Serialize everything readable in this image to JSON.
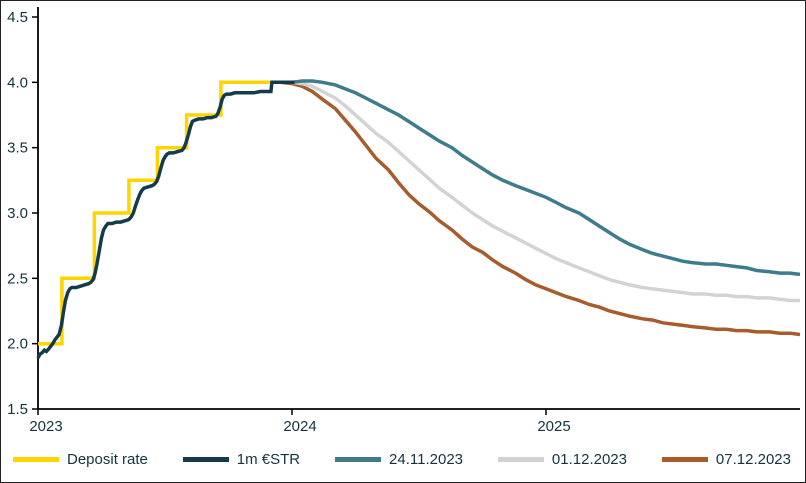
{
  "chart_data": {
    "type": "line",
    "title": "",
    "xlabel": "",
    "ylabel": "",
    "xlim": [
      2023,
      2026.0
    ],
    "ylim": [
      1.5,
      4.5
    ],
    "xtick_values": [
      2023,
      2024,
      2025
    ],
    "xtick_labels": [
      "2023",
      "2024",
      "2025"
    ],
    "ytick_values": [
      4.5,
      4.0,
      3.5,
      3.0,
      2.5,
      2.0,
      1.5
    ],
    "ytick_labels": [
      "4.5",
      "4.0",
      "3.5",
      "3.0",
      "2.5",
      "2.0",
      "1.5"
    ],
    "grid": false,
    "legend_position": "bottom",
    "axis_color": "#000000",
    "text_color": "#15333f",
    "background": "#ffffff",
    "series": [
      {
        "name": "Deposit rate",
        "color": "#ffd400",
        "width": 3.5,
        "step": true,
        "points": [
          [
            2023.0,
            2.0
          ],
          [
            2023.094,
            2.0
          ],
          [
            2023.094,
            2.5
          ],
          [
            2023.222,
            2.5
          ],
          [
            2023.222,
            3.0
          ],
          [
            2023.358,
            3.0
          ],
          [
            2023.358,
            3.25
          ],
          [
            2023.47,
            3.25
          ],
          [
            2023.47,
            3.5
          ],
          [
            2023.585,
            3.5
          ],
          [
            2023.585,
            3.75
          ],
          [
            2023.72,
            3.75
          ],
          [
            2023.72,
            4.0
          ],
          [
            2023.94,
            4.0
          ]
        ]
      },
      {
        "name": "1m €STR",
        "color": "#143b4a",
        "width": 3.5,
        "step": false,
        "points": [
          [
            2023.0,
            1.89
          ],
          [
            2023.008,
            1.92
          ],
          [
            2023.016,
            1.93
          ],
          [
            2023.025,
            1.95
          ],
          [
            2023.033,
            1.94
          ],
          [
            2023.042,
            1.96
          ],
          [
            2023.05,
            1.98
          ],
          [
            2023.058,
            2.0
          ],
          [
            2023.067,
            2.03
          ],
          [
            2023.075,
            2.05
          ],
          [
            2023.083,
            2.07
          ],
          [
            2023.092,
            2.14
          ],
          [
            2023.1,
            2.24
          ],
          [
            2023.108,
            2.33
          ],
          [
            2023.117,
            2.39
          ],
          [
            2023.125,
            2.42
          ],
          [
            2023.133,
            2.43
          ],
          [
            2023.15,
            2.43
          ],
          [
            2023.167,
            2.44
          ],
          [
            2023.183,
            2.45
          ],
          [
            2023.2,
            2.46
          ],
          [
            2023.208,
            2.47
          ],
          [
            2023.217,
            2.49
          ],
          [
            2023.225,
            2.54
          ],
          [
            2023.233,
            2.62
          ],
          [
            2023.242,
            2.72
          ],
          [
            2023.25,
            2.81
          ],
          [
            2023.258,
            2.87
          ],
          [
            2023.267,
            2.9
          ],
          [
            2023.275,
            2.92
          ],
          [
            2023.292,
            2.92
          ],
          [
            2023.308,
            2.93
          ],
          [
            2023.325,
            2.93
          ],
          [
            2023.342,
            2.94
          ],
          [
            2023.358,
            2.95
          ],
          [
            2023.367,
            2.97
          ],
          [
            2023.375,
            3.0
          ],
          [
            2023.383,
            3.05
          ],
          [
            2023.392,
            3.1
          ],
          [
            2023.4,
            3.14
          ],
          [
            2023.408,
            3.17
          ],
          [
            2023.417,
            3.19
          ],
          [
            2023.433,
            3.2
          ],
          [
            2023.45,
            3.21
          ],
          [
            2023.458,
            3.22
          ],
          [
            2023.467,
            3.24
          ],
          [
            2023.475,
            3.28
          ],
          [
            2023.483,
            3.34
          ],
          [
            2023.492,
            3.4
          ],
          [
            2023.5,
            3.43
          ],
          [
            2023.508,
            3.45
          ],
          [
            2023.517,
            3.46
          ],
          [
            2023.533,
            3.46
          ],
          [
            2023.55,
            3.47
          ],
          [
            2023.567,
            3.48
          ],
          [
            2023.575,
            3.5
          ],
          [
            2023.583,
            3.54
          ],
          [
            2023.592,
            3.6
          ],
          [
            2023.6,
            3.66
          ],
          [
            2023.608,
            3.7
          ],
          [
            2023.617,
            3.71
          ],
          [
            2023.633,
            3.72
          ],
          [
            2023.65,
            3.72
          ],
          [
            2023.667,
            3.73
          ],
          [
            2023.683,
            3.73
          ],
          [
            2023.7,
            3.74
          ],
          [
            2023.708,
            3.76
          ],
          [
            2023.717,
            3.81
          ],
          [
            2023.725,
            3.87
          ],
          [
            2023.733,
            3.9
          ],
          [
            2023.742,
            3.91
          ],
          [
            2023.758,
            3.91
          ],
          [
            2023.775,
            3.92
          ],
          [
            2023.8,
            3.92
          ],
          [
            2023.825,
            3.92
          ],
          [
            2023.85,
            3.92
          ],
          [
            2023.875,
            3.93
          ],
          [
            2023.9,
            3.93
          ],
          [
            2023.917,
            3.93
          ],
          [
            2023.921,
            4.0
          ],
          [
            2023.95,
            4.0
          ],
          [
            2023.975,
            4.0
          ],
          [
            2024.0,
            4.0
          ],
          [
            2024.01,
            4.0
          ]
        ]
      },
      {
        "name": "24.11.2023",
        "color": "#3d7d8b",
        "width": 3.5,
        "step": false,
        "points": [
          [
            2023.955,
            4.0
          ],
          [
            2024.0,
            4.0
          ],
          [
            2024.04,
            4.01
          ],
          [
            2024.08,
            4.01
          ],
          [
            2024.12,
            4.0
          ],
          [
            2024.17,
            3.98
          ],
          [
            2024.21,
            3.95
          ],
          [
            2024.25,
            3.92
          ],
          [
            2024.29,
            3.88
          ],
          [
            2024.33,
            3.84
          ],
          [
            2024.38,
            3.79
          ],
          [
            2024.42,
            3.75
          ],
          [
            2024.46,
            3.7
          ],
          [
            2024.5,
            3.65
          ],
          [
            2024.54,
            3.6
          ],
          [
            2024.58,
            3.55
          ],
          [
            2024.63,
            3.5
          ],
          [
            2024.67,
            3.44
          ],
          [
            2024.71,
            3.39
          ],
          [
            2024.75,
            3.34
          ],
          [
            2024.79,
            3.29
          ],
          [
            2024.83,
            3.25
          ],
          [
            2024.88,
            3.21
          ],
          [
            2024.92,
            3.18
          ],
          [
            2024.96,
            3.15
          ],
          [
            2025.0,
            3.12
          ],
          [
            2025.04,
            3.08
          ],
          [
            2025.08,
            3.04
          ],
          [
            2025.13,
            3.0
          ],
          [
            2025.17,
            2.95
          ],
          [
            2025.21,
            2.9
          ],
          [
            2025.25,
            2.85
          ],
          [
            2025.29,
            2.8
          ],
          [
            2025.33,
            2.76
          ],
          [
            2025.38,
            2.72
          ],
          [
            2025.42,
            2.69
          ],
          [
            2025.46,
            2.67
          ],
          [
            2025.5,
            2.65
          ],
          [
            2025.54,
            2.63
          ],
          [
            2025.58,
            2.62
          ],
          [
            2025.63,
            2.61
          ],
          [
            2025.67,
            2.61
          ],
          [
            2025.71,
            2.6
          ],
          [
            2025.75,
            2.59
          ],
          [
            2025.79,
            2.58
          ],
          [
            2025.83,
            2.56
          ],
          [
            2025.88,
            2.55
          ],
          [
            2025.92,
            2.54
          ],
          [
            2025.96,
            2.54
          ],
          [
            2026.0,
            2.53
          ]
        ]
      },
      {
        "name": "01.12.2023",
        "color": "#d2d4d3",
        "width": 3.5,
        "step": false,
        "points": [
          [
            2023.955,
            4.0
          ],
          [
            2024.0,
            4.0
          ],
          [
            2024.04,
            3.99
          ],
          [
            2024.08,
            3.97
          ],
          [
            2024.12,
            3.93
          ],
          [
            2024.17,
            3.88
          ],
          [
            2024.21,
            3.82
          ],
          [
            2024.25,
            3.75
          ],
          [
            2024.29,
            3.68
          ],
          [
            2024.33,
            3.61
          ],
          [
            2024.38,
            3.54
          ],
          [
            2024.42,
            3.47
          ],
          [
            2024.46,
            3.4
          ],
          [
            2024.5,
            3.33
          ],
          [
            2024.54,
            3.26
          ],
          [
            2024.58,
            3.19
          ],
          [
            2024.63,
            3.12
          ],
          [
            2024.67,
            3.06
          ],
          [
            2024.71,
            3.0
          ],
          [
            2024.75,
            2.95
          ],
          [
            2024.79,
            2.9
          ],
          [
            2024.83,
            2.86
          ],
          [
            2024.88,
            2.81
          ],
          [
            2024.92,
            2.77
          ],
          [
            2024.96,
            2.73
          ],
          [
            2025.0,
            2.69
          ],
          [
            2025.04,
            2.65
          ],
          [
            2025.08,
            2.62
          ],
          [
            2025.13,
            2.58
          ],
          [
            2025.17,
            2.55
          ],
          [
            2025.21,
            2.52
          ],
          [
            2025.25,
            2.49
          ],
          [
            2025.29,
            2.47
          ],
          [
            2025.33,
            2.45
          ],
          [
            2025.38,
            2.43
          ],
          [
            2025.42,
            2.42
          ],
          [
            2025.46,
            2.41
          ],
          [
            2025.5,
            2.4
          ],
          [
            2025.54,
            2.39
          ],
          [
            2025.58,
            2.38
          ],
          [
            2025.63,
            2.38
          ],
          [
            2025.67,
            2.37
          ],
          [
            2025.71,
            2.37
          ],
          [
            2025.75,
            2.36
          ],
          [
            2025.79,
            2.36
          ],
          [
            2025.83,
            2.35
          ],
          [
            2025.88,
            2.35
          ],
          [
            2025.92,
            2.34
          ],
          [
            2025.96,
            2.33
          ],
          [
            2026.0,
            2.33
          ]
        ]
      },
      {
        "name": "07.12.2023",
        "color": "#a85b2b",
        "width": 3.5,
        "step": false,
        "points": [
          [
            2023.955,
            4.0
          ],
          [
            2024.0,
            3.99
          ],
          [
            2024.04,
            3.97
          ],
          [
            2024.08,
            3.93
          ],
          [
            2024.12,
            3.87
          ],
          [
            2024.17,
            3.8
          ],
          [
            2024.21,
            3.71
          ],
          [
            2024.25,
            3.62
          ],
          [
            2024.29,
            3.52
          ],
          [
            2024.33,
            3.42
          ],
          [
            2024.38,
            3.33
          ],
          [
            2024.42,
            3.23
          ],
          [
            2024.46,
            3.14
          ],
          [
            2024.5,
            3.07
          ],
          [
            2024.54,
            3.01
          ],
          [
            2024.58,
            2.94
          ],
          [
            2024.63,
            2.87
          ],
          [
            2024.67,
            2.8
          ],
          [
            2024.71,
            2.74
          ],
          [
            2024.75,
            2.7
          ],
          [
            2024.79,
            2.64
          ],
          [
            2024.83,
            2.59
          ],
          [
            2024.88,
            2.54
          ],
          [
            2024.92,
            2.49
          ],
          [
            2024.96,
            2.45
          ],
          [
            2025.0,
            2.42
          ],
          [
            2025.04,
            2.39
          ],
          [
            2025.08,
            2.36
          ],
          [
            2025.13,
            2.33
          ],
          [
            2025.17,
            2.3
          ],
          [
            2025.21,
            2.28
          ],
          [
            2025.25,
            2.25
          ],
          [
            2025.29,
            2.23
          ],
          [
            2025.33,
            2.21
          ],
          [
            2025.38,
            2.19
          ],
          [
            2025.42,
            2.18
          ],
          [
            2025.46,
            2.16
          ],
          [
            2025.5,
            2.15
          ],
          [
            2025.54,
            2.14
          ],
          [
            2025.58,
            2.13
          ],
          [
            2025.63,
            2.12
          ],
          [
            2025.67,
            2.11
          ],
          [
            2025.71,
            2.11
          ],
          [
            2025.75,
            2.1
          ],
          [
            2025.79,
            2.1
          ],
          [
            2025.83,
            2.09
          ],
          [
            2025.88,
            2.09
          ],
          [
            2025.92,
            2.08
          ],
          [
            2025.96,
            2.08
          ],
          [
            2026.0,
            2.07
          ]
        ]
      }
    ]
  }
}
